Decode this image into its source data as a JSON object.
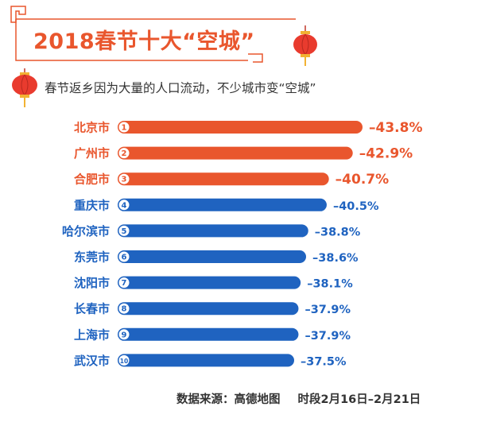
{
  "title": "2018春节十大“空城”",
  "subtitle": "春节返乡因为大量的人口流动，不少城市变“空城”",
  "source_label": "数据来源：高德地图",
  "period_label": "时段2月16日–2月21日",
  "colors": {
    "accent": "#e9562d",
    "blue": "#1f63c0",
    "lantern": "#e93b2e",
    "lantern_gold": "#f2b233"
  },
  "chart_data": {
    "type": "bar",
    "orientation": "horizontal",
    "categories": [
      "北京市",
      "广州市",
      "合肥市",
      "重庆市",
      "哈尔滨市",
      "东莞市",
      "沈阳市",
      "长春市",
      "上海市",
      "武汉市"
    ],
    "ranks": [
      "1",
      "2",
      "3",
      "4",
      "5",
      "6",
      "7",
      "8",
      "9",
      "10"
    ],
    "values": [
      -43.8,
      -42.9,
      -40.7,
      -40.5,
      -38.8,
      -38.6,
      -38.1,
      -37.9,
      -37.9,
      -37.5
    ],
    "labels": [
      "–43.8%",
      "–42.9%",
      "–40.7%",
      "–40.5%",
      "–38.8%",
      "–38.6%",
      "–38.1%",
      "–37.9%",
      "–37.9%",
      "–37.5%"
    ],
    "highlight_top": 3,
    "grid": false,
    "legend": "none"
  }
}
